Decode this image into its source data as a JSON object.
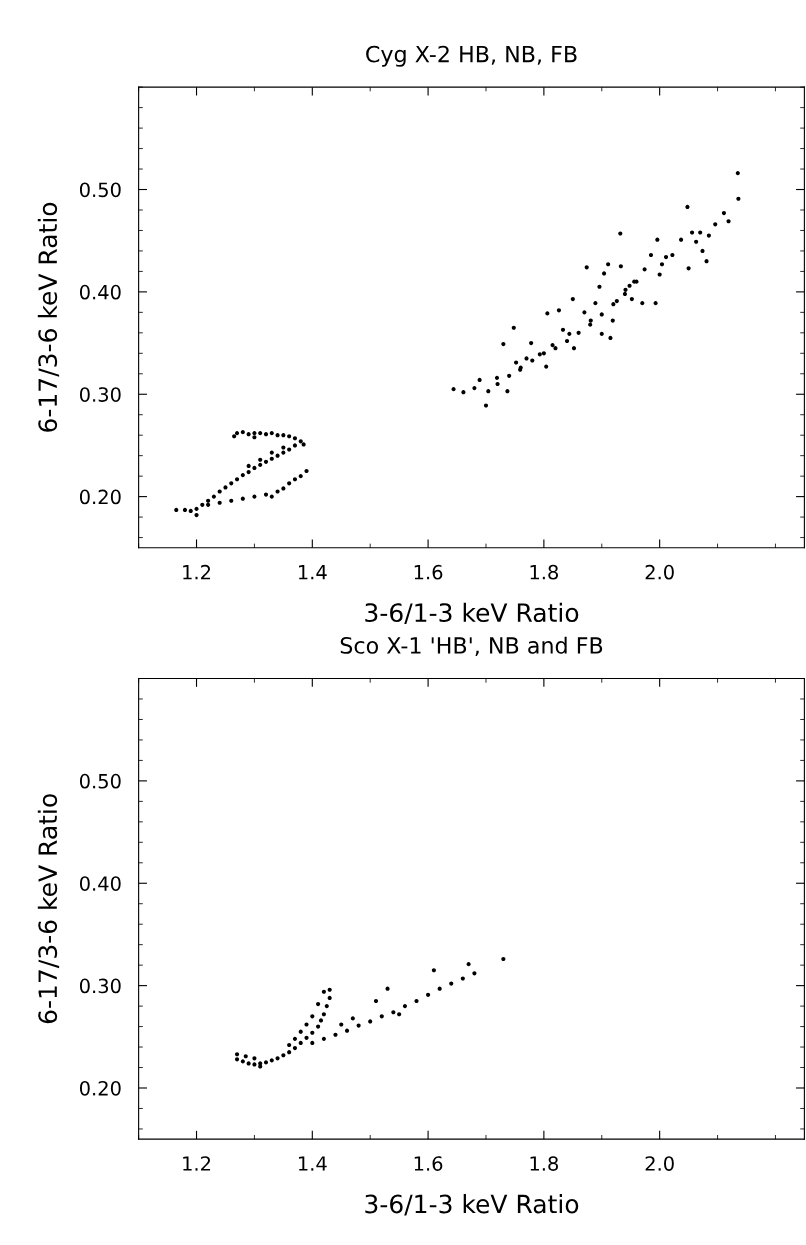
{
  "chart_data": [
    {
      "type": "scatter",
      "title": "Cyg X-2 HB, NB, FB",
      "xlabel": "3-6/1-3 keV Ratio",
      "ylabel": "6-17/3-6 keV Ratio",
      "marker": "circle",
      "grid": false,
      "xlim": [
        1.1,
        2.25
      ],
      "xticks": [
        1.2,
        1.4,
        1.6,
        1.8,
        {
          "value": 2.0,
          "label": "2.0"
        }
      ],
      "ylim": [
        0.15,
        0.6
      ],
      "yticks": [
        {
          "value": 0.2,
          "label": "0.20"
        },
        {
          "value": 0.3,
          "label": "0.30"
        },
        {
          "value": 0.4,
          "label": "0.40"
        },
        {
          "value": 0.5,
          "label": "0.50"
        }
      ],
      "series": [
        {
          "color": "#000000",
          "x": [
            1.27,
            1.28,
            1.29,
            1.3,
            1.31,
            1.32,
            1.33,
            1.34,
            1.35,
            1.36,
            1.37,
            1.38,
            1.385,
            1.265,
            1.3,
            1.37,
            1.36,
            1.35,
            1.34,
            1.33,
            1.32,
            1.31,
            1.3,
            1.29,
            1.28,
            1.27,
            1.26,
            1.25,
            1.24,
            1.23,
            1.22,
            1.21,
            1.2,
            1.19,
            1.18,
            1.165,
            1.2,
            1.35,
            1.33,
            1.31,
            1.29,
            1.22,
            1.24,
            1.26,
            1.28,
            1.3,
            1.32,
            1.34,
            1.35,
            1.36,
            1.37,
            1.38,
            1.39,
            1.33,
            1.644,
            1.661,
            1.68,
            1.7,
            1.689,
            1.704,
            1.719,
            1.73,
            1.737,
            1.748,
            1.752,
            1.759,
            1.77,
            1.778,
            1.793,
            1.804,
            1.806,
            1.815,
            1.826,
            1.833,
            1.844,
            1.852,
            1.85,
            1.874,
            1.87,
            1.881,
            1.889,
            1.896,
            1.904,
            1.9,
            1.915,
            1.911,
            1.919,
            1.926,
            1.932,
            1.933,
            1.941,
            1.948,
            1.952,
            1.956,
            1.97,
            1.974,
            1.985,
            1.993,
            1.996,
            2.0,
            2.004,
            2.011,
            2.022,
            2.037,
            2.048,
            2.05,
            2.056,
            2.063,
            2.07,
            2.074,
            2.081,
            2.085,
            2.096,
            2.111,
            2.119,
            2.135,
            2.136,
            1.72,
            1.74,
            1.76,
            1.78,
            1.8,
            1.82,
            1.84,
            1.86,
            1.88,
            1.9,
            1.92,
            1.94,
            1.96
          ],
          "values": [
            0.262,
            0.263,
            0.261,
            0.262,
            0.262,
            0.261,
            0.262,
            0.26,
            0.26,
            0.259,
            0.257,
            0.254,
            0.251,
            0.259,
            0.258,
            0.25,
            0.246,
            0.243,
            0.24,
            0.237,
            0.234,
            0.231,
            0.228,
            0.224,
            0.221,
            0.217,
            0.213,
            0.209,
            0.205,
            0.2,
            0.196,
            0.192,
            0.188,
            0.186,
            0.187,
            0.187,
            0.182,
            0.248,
            0.243,
            0.236,
            0.23,
            0.192,
            0.194,
            0.196,
            0.198,
            0.2,
            0.202,
            0.205,
            0.208,
            0.213,
            0.217,
            0.22,
            0.225,
            0.2,
            0.305,
            0.302,
            0.306,
            0.289,
            0.314,
            0.303,
            0.316,
            0.349,
            0.303,
            0.365,
            0.331,
            0.324,
            0.335,
            0.35,
            0.339,
            0.327,
            0.379,
            0.348,
            0.382,
            0.363,
            0.359,
            0.345,
            0.393,
            0.424,
            0.38,
            0.372,
            0.389,
            0.405,
            0.418,
            0.359,
            0.355,
            0.427,
            0.372,
            0.391,
            0.457,
            0.425,
            0.402,
            0.406,
            0.393,
            0.41,
            0.389,
            0.422,
            0.436,
            0.389,
            0.451,
            0.417,
            0.427,
            0.434,
            0.436,
            0.451,
            0.483,
            0.423,
            0.458,
            0.449,
            0.458,
            0.44,
            0.43,
            0.455,
            0.466,
            0.477,
            0.469,
            0.516,
            0.491,
            0.31,
            0.318,
            0.326,
            0.333,
            0.34,
            0.345,
            0.352,
            0.36,
            0.368,
            0.378,
            0.388,
            0.398,
            0.41
          ]
        }
      ]
    },
    {
      "type": "scatter",
      "title": "Sco X-1 'HB', NB and FB",
      "xlabel": "3-6/1-3 keV Ratio",
      "ylabel": "6-17/3-6 keV Ratio",
      "marker": "circle",
      "grid": false,
      "xlim": [
        1.1,
        2.25
      ],
      "xticks": [
        1.2,
        1.4,
        1.6,
        1.8,
        {
          "value": 2.0,
          "label": "2.0"
        }
      ],
      "ylim": [
        0.15,
        0.6
      ],
      "yticks": [
        {
          "value": 0.2,
          "label": "0.20"
        },
        {
          "value": 0.3,
          "label": "0.30"
        },
        {
          "value": 0.4,
          "label": "0.40"
        },
        {
          "value": 0.5,
          "label": "0.50"
        }
      ],
      "series": [
        {
          "color": "#000000",
          "x": [
            1.27,
            1.28,
            1.29,
            1.3,
            1.31,
            1.32,
            1.33,
            1.34,
            1.285,
            1.3,
            1.31,
            1.27,
            1.35,
            1.36,
            1.37,
            1.38,
            1.39,
            1.4,
            1.41,
            1.415,
            1.42,
            1.425,
            1.43,
            1.42,
            1.43,
            1.41,
            1.4,
            1.39,
            1.38,
            1.37,
            1.36,
            1.4,
            1.42,
            1.44,
            1.46,
            1.48,
            1.5,
            1.52,
            1.54,
            1.56,
            1.58,
            1.6,
            1.62,
            1.64,
            1.66,
            1.68,
            1.51,
            1.53,
            1.61,
            1.67,
            1.73,
            1.55,
            1.45,
            1.47
          ],
          "values": [
            0.228,
            0.226,
            0.224,
            0.223,
            0.224,
            0.225,
            0.227,
            0.229,
            0.231,
            0.229,
            0.221,
            0.233,
            0.232,
            0.235,
            0.239,
            0.244,
            0.249,
            0.254,
            0.26,
            0.266,
            0.272,
            0.28,
            0.288,
            0.294,
            0.296,
            0.282,
            0.27,
            0.262,
            0.255,
            0.248,
            0.242,
            0.244,
            0.248,
            0.252,
            0.256,
            0.261,
            0.265,
            0.27,
            0.274,
            0.28,
            0.285,
            0.291,
            0.297,
            0.302,
            0.307,
            0.312,
            0.285,
            0.297,
            0.315,
            0.321,
            0.326,
            0.272,
            0.262,
            0.268
          ]
        }
      ]
    }
  ]
}
